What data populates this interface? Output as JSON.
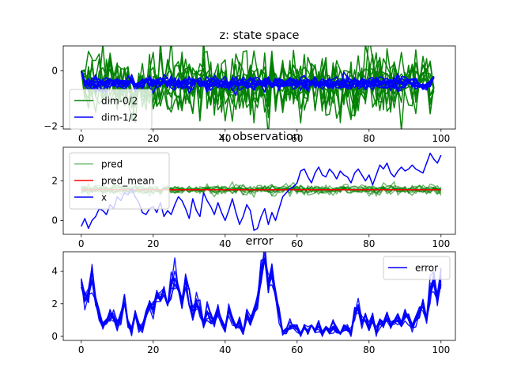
{
  "figure": {
    "colors": {
      "green": "#008000",
      "blue": "#0000ff",
      "red": "#ff0000",
      "light_green": "#7fbf7f"
    }
  },
  "chart_data": [
    {
      "type": "line",
      "title": "z: state space",
      "xlabel": "",
      "ylabel": "",
      "xlim": [
        -5,
        104
      ],
      "ylim": [
        -2.1,
        0.9
      ],
      "xticks": [
        0,
        20,
        40,
        60,
        80,
        100
      ],
      "yticks": [
        -2,
        0
      ],
      "n_points": 99,
      "legend": {
        "position": "lower-left",
        "entries": [
          {
            "label": "dim-0/2",
            "color": "#008000"
          },
          {
            "label": "dim-1/2",
            "color": "#0000ff"
          }
        ]
      },
      "series": [
        {
          "color": "#008000",
          "count": 10,
          "start": 0.0,
          "level": -0.5,
          "spread": 0.55,
          "alpha": 0.95,
          "width": 1.5
        },
        {
          "color": "#0000ff",
          "count": 10,
          "start": 0.0,
          "level": -0.45,
          "spread": 0.12,
          "alpha": 1.0,
          "width": 1.6
        }
      ]
    },
    {
      "type": "line",
      "title": "x: observation",
      "xlabel": "",
      "ylabel": "",
      "xlim": [
        -5,
        104
      ],
      "ylim": [
        -0.7,
        3.7
      ],
      "xticks": [
        0,
        20,
        40,
        60,
        80,
        100
      ],
      "yticks": [
        0,
        2
      ],
      "legend": {
        "position": "upper-left",
        "entries": [
          {
            "label": "pred",
            "color": "#7fbf7f"
          },
          {
            "label": "pred_mean",
            "color": "#ff0000"
          },
          {
            "label": "x",
            "color": "#0000ff"
          }
        ]
      },
      "pred": {
        "color": "#008000",
        "count": 10,
        "level": 1.55,
        "spread": 0.12,
        "alpha": 0.55
      },
      "pred_mean": {
        "color": "#ff0000",
        "value": 1.55
      },
      "x": {
        "color": "#0000ff",
        "points": [
          [
            0,
            -0.3
          ],
          [
            1,
            0.1
          ],
          [
            2,
            -0.4
          ],
          [
            3,
            0.0
          ],
          [
            4,
            0.2
          ],
          [
            5,
            0.6
          ],
          [
            6,
            0.5
          ],
          [
            7,
            0.3
          ],
          [
            8,
            0.8
          ],
          [
            9,
            0.6
          ],
          [
            10,
            1.2
          ],
          [
            11,
            1.0
          ],
          [
            12,
            1.4
          ],
          [
            13,
            1.3
          ],
          [
            14,
            1.6
          ],
          [
            15,
            1.2
          ],
          [
            16,
            0.9
          ],
          [
            17,
            0.4
          ],
          [
            18,
            0.3
          ],
          [
            19,
            0.6
          ],
          [
            20,
            0.7
          ],
          [
            21,
            0.4
          ],
          [
            22,
            0.9
          ],
          [
            23,
            0.2
          ],
          [
            24,
            0.5
          ],
          [
            25,
            0.3
          ],
          [
            26,
            0.8
          ],
          [
            27,
            1.2
          ],
          [
            28,
            1.0
          ],
          [
            29,
            0.6
          ],
          [
            30,
            0.1
          ],
          [
            31,
            1.1
          ],
          [
            32,
            0.5
          ],
          [
            33,
            0.2
          ],
          [
            34,
            1.4
          ],
          [
            35,
            1.0
          ],
          [
            36,
            0.7
          ],
          [
            37,
            0.3
          ],
          [
            38,
            0.9
          ],
          [
            39,
            0.4
          ],
          [
            40,
            0.0
          ],
          [
            41,
            0.5
          ],
          [
            42,
            1.1
          ],
          [
            43,
            0.4
          ],
          [
            44,
            -0.2
          ],
          [
            45,
            0.2
          ],
          [
            46,
            0.8
          ],
          [
            47,
            0.5
          ],
          [
            48,
            -0.5
          ],
          [
            49,
            -0.4
          ],
          [
            50,
            0.2
          ],
          [
            51,
            0.6
          ],
          [
            52,
            -0.2
          ],
          [
            53,
            0.4
          ],
          [
            54,
            0.0
          ],
          [
            55,
            0.6
          ],
          [
            56,
            1.2
          ],
          [
            57,
            1.4
          ],
          [
            58,
            1.6
          ],
          [
            59,
            1.7
          ],
          [
            60,
            1.9
          ],
          [
            61,
            2.5
          ],
          [
            62,
            2.6
          ],
          [
            63,
            2.2
          ],
          [
            64,
            1.9
          ],
          [
            65,
            2.4
          ],
          [
            66,
            2.7
          ],
          [
            67,
            2.3
          ],
          [
            68,
            2.2
          ],
          [
            69,
            2.6
          ],
          [
            70,
            2.4
          ],
          [
            71,
            2.1
          ],
          [
            72,
            2.5
          ],
          [
            73,
            2.3
          ],
          [
            74,
            2.2
          ],
          [
            75,
            1.9
          ],
          [
            76,
            2.4
          ],
          [
            77,
            2.6
          ],
          [
            78,
            2.3
          ],
          [
            79,
            2.0
          ],
          [
            80,
            2.3
          ],
          [
            81,
            1.8
          ],
          [
            82,
            2.3
          ],
          [
            83,
            2.8
          ],
          [
            84,
            2.6
          ],
          [
            85,
            2.9
          ],
          [
            86,
            2.4
          ],
          [
            87,
            2.2
          ],
          [
            88,
            2.5
          ],
          [
            89,
            2.7
          ],
          [
            90,
            2.5
          ],
          [
            91,
            2.6
          ],
          [
            92,
            2.8
          ],
          [
            93,
            2.6
          ],
          [
            94,
            2.5
          ],
          [
            95,
            2.4
          ],
          [
            96,
            2.9
          ],
          [
            97,
            3.4
          ],
          [
            98,
            3.1
          ],
          [
            99,
            2.9
          ],
          [
            100,
            3.3
          ]
        ]
      }
    },
    {
      "type": "line",
      "title": "error",
      "xlabel": "",
      "ylabel": "",
      "xlim": [
        -5,
        104
      ],
      "ylim": [
        -0.25,
        5.2
      ],
      "xticks": [
        0,
        20,
        40,
        60,
        80,
        100
      ],
      "yticks": [
        0,
        2,
        4
      ],
      "legend": {
        "position": "upper-right",
        "entries": [
          {
            "label": "error",
            "color": "#0000ff"
          }
        ]
      },
      "error": {
        "color": "#0000ff",
        "count": 10,
        "jitter": 0.35,
        "points": [
          [
            0,
            3.3
          ],
          [
            1,
            2.3
          ],
          [
            2,
            2.6
          ],
          [
            3,
            3.9
          ],
          [
            4,
            2.5
          ],
          [
            5,
            1.3
          ],
          [
            6,
            0.7
          ],
          [
            7,
            0.8
          ],
          [
            8,
            1.3
          ],
          [
            9,
            1.1
          ],
          [
            10,
            0.7
          ],
          [
            11,
            1.2
          ],
          [
            12,
            2.3
          ],
          [
            13,
            1.0
          ],
          [
            14,
            0.3
          ],
          [
            15,
            1.4
          ],
          [
            16,
            0.6
          ],
          [
            17,
            0.5
          ],
          [
            18,
            1.1
          ],
          [
            19,
            1.9
          ],
          [
            20,
            1.7
          ],
          [
            21,
            2.5
          ],
          [
            22,
            2.0
          ],
          [
            23,
            2.8
          ],
          [
            24,
            2.2
          ],
          [
            25,
            3.2
          ],
          [
            26,
            3.5
          ],
          [
            27,
            2.6
          ],
          [
            28,
            1.9
          ],
          [
            29,
            3.6
          ],
          [
            30,
            2.4
          ],
          [
            31,
            1.4
          ],
          [
            32,
            2.0
          ],
          [
            33,
            1.6
          ],
          [
            34,
            0.7
          ],
          [
            35,
            1.5
          ],
          [
            36,
            1.1
          ],
          [
            37,
            0.9
          ],
          [
            38,
            1.6
          ],
          [
            39,
            0.9
          ],
          [
            40,
            0.5
          ],
          [
            41,
            1.6
          ],
          [
            42,
            1.3
          ],
          [
            43,
            0.6
          ],
          [
            44,
            0.8
          ],
          [
            45,
            0.3
          ],
          [
            46,
            1.4
          ],
          [
            47,
            1.0
          ],
          [
            48,
            1.8
          ],
          [
            49,
            2.0
          ],
          [
            50,
            4.0
          ],
          [
            51,
            4.6
          ],
          [
            52,
            3.1
          ],
          [
            53,
            3.9
          ],
          [
            54,
            2.3
          ],
          [
            55,
            1.4
          ],
          [
            56,
            0.2
          ],
          [
            57,
            0.4
          ],
          [
            58,
            0.6
          ],
          [
            59,
            0.7
          ],
          [
            60,
            0.5
          ],
          [
            61,
            0.1
          ],
          [
            62,
            0.8
          ],
          [
            63,
            0.3
          ],
          [
            64,
            0.6
          ],
          [
            65,
            0.4
          ],
          [
            66,
            0.7
          ],
          [
            67,
            0.2
          ],
          [
            68,
            0.5
          ],
          [
            69,
            0.3
          ],
          [
            70,
            0.6
          ],
          [
            71,
            0.4
          ],
          [
            72,
            0.2
          ],
          [
            73,
            0.6
          ],
          [
            74,
            0.5
          ],
          [
            75,
            0.2
          ],
          [
            76,
            1.4
          ],
          [
            77,
            1.8
          ],
          [
            78,
            0.9
          ],
          [
            79,
            1.3
          ],
          [
            80,
            0.6
          ],
          [
            81,
            1.1
          ],
          [
            82,
            0.2
          ],
          [
            83,
            0.9
          ],
          [
            84,
            0.8
          ],
          [
            85,
            1.1
          ],
          [
            86,
            0.7
          ],
          [
            87,
            0.9
          ],
          [
            88,
            1.1
          ],
          [
            89,
            0.8
          ],
          [
            90,
            1.3
          ],
          [
            91,
            1.1
          ],
          [
            92,
            0.6
          ],
          [
            93,
            1.0
          ],
          [
            94,
            1.6
          ],
          [
            95,
            1.9
          ],
          [
            96,
            1.2
          ],
          [
            97,
            2.8
          ],
          [
            98,
            3.5
          ],
          [
            99,
            2.3
          ],
          [
            100,
            3.6
          ]
        ]
      }
    }
  ]
}
